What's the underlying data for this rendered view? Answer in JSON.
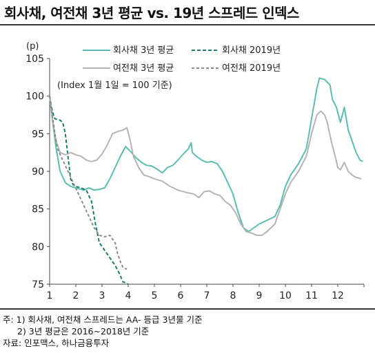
{
  "title": "회사채, 여전채 3년 평균 vs. 19년 스프레드 인덱스",
  "chart_data": {
    "type": "line",
    "yunit": "(p)",
    "annotation": "(Index 1월 1일 = 100 기준)",
    "ylim": [
      75,
      105
    ],
    "yticks": [
      75,
      80,
      85,
      90,
      95,
      100,
      105
    ],
    "xlim": [
      1,
      13
    ],
    "xticks": [
      1,
      2,
      3,
      4,
      5,
      6,
      7,
      8,
      9,
      10,
      11,
      12
    ],
    "series": [
      {
        "name": "회사채 3년 평균",
        "color": "#5bbcb0",
        "dash": "",
        "points": [
          [
            1.0,
            100
          ],
          [
            1.1,
            97
          ],
          [
            1.25,
            93
          ],
          [
            1.4,
            90
          ],
          [
            1.6,
            88.5
          ],
          [
            1.8,
            88
          ],
          [
            2.0,
            87.8
          ],
          [
            2.3,
            87.5
          ],
          [
            2.5,
            87.8
          ],
          [
            2.7,
            87.5
          ],
          [
            2.9,
            87.6
          ],
          [
            3.1,
            87.8
          ],
          [
            3.3,
            89
          ],
          [
            3.5,
            90.5
          ],
          [
            3.7,
            92
          ],
          [
            3.9,
            93.3
          ],
          [
            4.1,
            92.6
          ],
          [
            4.3,
            91.8
          ],
          [
            4.5,
            91.2
          ],
          [
            4.7,
            90.8
          ],
          [
            4.9,
            90.7
          ],
          [
            5.1,
            90.3
          ],
          [
            5.3,
            89.8
          ],
          [
            5.5,
            90.5
          ],
          [
            5.7,
            90.8
          ],
          [
            5.9,
            91.5
          ],
          [
            6.1,
            92.3
          ],
          [
            6.3,
            93.0
          ],
          [
            6.4,
            93.8
          ],
          [
            6.45,
            92.5
          ],
          [
            6.6,
            92
          ],
          [
            6.8,
            91.5
          ],
          [
            7.0,
            91.2
          ],
          [
            7.2,
            91.3
          ],
          [
            7.4,
            91.0
          ],
          [
            7.6,
            90.0
          ],
          [
            7.8,
            88.5
          ],
          [
            8.0,
            87
          ],
          [
            8.2,
            84.5
          ],
          [
            8.4,
            82.5
          ],
          [
            8.6,
            82
          ],
          [
            8.8,
            82.5
          ],
          [
            9.0,
            83
          ],
          [
            9.3,
            83.5
          ],
          [
            9.6,
            84
          ],
          [
            9.8,
            85.5
          ],
          [
            10.0,
            88
          ],
          [
            10.2,
            89.5
          ],
          [
            10.5,
            91
          ],
          [
            10.8,
            93
          ],
          [
            11.0,
            97
          ],
          [
            11.2,
            101
          ],
          [
            11.3,
            102.4
          ],
          [
            11.5,
            102.2
          ],
          [
            11.7,
            101.5
          ],
          [
            11.8,
            99.5
          ],
          [
            11.95,
            98.5
          ],
          [
            12.1,
            96.5
          ],
          [
            12.25,
            98.5
          ],
          [
            12.4,
            95.5
          ],
          [
            12.55,
            94
          ],
          [
            12.7,
            92.5
          ],
          [
            12.85,
            91.5
          ],
          [
            12.95,
            91.3
          ]
        ]
      },
      {
        "name": "회사채 2019년",
        "color": "#1a7a6c",
        "dash": "5,3",
        "points": [
          [
            1.0,
            100
          ],
          [
            1.1,
            98
          ],
          [
            1.2,
            97
          ],
          [
            1.4,
            96.8
          ],
          [
            1.5,
            96.5
          ],
          [
            1.6,
            95
          ],
          [
            1.7,
            92
          ],
          [
            1.8,
            89
          ],
          [
            1.9,
            88.2
          ],
          [
            2.0,
            88
          ],
          [
            2.2,
            87.8
          ],
          [
            2.4,
            87.5
          ],
          [
            2.6,
            86
          ],
          [
            2.75,
            83
          ],
          [
            2.9,
            80.5
          ],
          [
            3.1,
            79.5
          ],
          [
            3.3,
            78.5
          ],
          [
            3.5,
            77.5
          ],
          [
            3.65,
            76.5
          ],
          [
            3.8,
            75.3
          ],
          [
            3.9,
            75.2
          ],
          [
            4.0,
            75
          ]
        ]
      },
      {
        "name": "여전채 3년 평균",
        "color": "#b4b4b4",
        "dash": "",
        "points": [
          [
            1.0,
            100
          ],
          [
            1.1,
            97
          ],
          [
            1.25,
            94
          ],
          [
            1.4,
            92.5
          ],
          [
            1.6,
            92.2
          ],
          [
            1.8,
            92.5
          ],
          [
            2.0,
            92.2
          ],
          [
            2.2,
            92
          ],
          [
            2.4,
            91.5
          ],
          [
            2.6,
            91.3
          ],
          [
            2.8,
            91.5
          ],
          [
            3.0,
            92.3
          ],
          [
            3.2,
            93.5
          ],
          [
            3.4,
            95
          ],
          [
            3.6,
            95.3
          ],
          [
            3.8,
            95.5
          ],
          [
            3.95,
            95.8
          ],
          [
            4.05,
            94.5
          ],
          [
            4.2,
            92
          ],
          [
            4.4,
            90.5
          ],
          [
            4.6,
            89.5
          ],
          [
            4.8,
            89.3
          ],
          [
            5.0,
            89.0
          ],
          [
            5.3,
            88.7
          ],
          [
            5.6,
            88.0
          ],
          [
            5.9,
            87.5
          ],
          [
            6.2,
            87.2
          ],
          [
            6.5,
            87.0
          ],
          [
            6.7,
            86.5
          ],
          [
            6.9,
            87.3
          ],
          [
            7.1,
            87.4
          ],
          [
            7.3,
            87.0
          ],
          [
            7.5,
            86.8
          ],
          [
            7.7,
            86.0
          ],
          [
            7.9,
            85.5
          ],
          [
            8.1,
            84.5
          ],
          [
            8.3,
            83
          ],
          [
            8.5,
            82
          ],
          [
            8.7,
            81.8
          ],
          [
            8.9,
            81.5
          ],
          [
            9.1,
            81.5
          ],
          [
            9.3,
            82
          ],
          [
            9.6,
            83
          ],
          [
            9.8,
            85
          ],
          [
            10.0,
            87
          ],
          [
            10.2,
            88.5
          ],
          [
            10.5,
            90
          ],
          [
            10.8,
            92
          ],
          [
            11.0,
            95
          ],
          [
            11.2,
            97.5
          ],
          [
            11.35,
            98
          ],
          [
            11.5,
            97.5
          ],
          [
            11.6,
            96.5
          ],
          [
            11.75,
            94
          ],
          [
            11.9,
            92
          ],
          [
            12.0,
            90.5
          ],
          [
            12.1,
            90.2
          ],
          [
            12.25,
            91.2
          ],
          [
            12.4,
            90
          ],
          [
            12.55,
            89.5
          ],
          [
            12.7,
            89.2
          ],
          [
            12.9,
            89
          ]
        ]
      },
      {
        "name": "여전채 2019년",
        "color": "#8a8a8a",
        "dash": "4,3",
        "points": [
          [
            1.0,
            100
          ],
          [
            1.1,
            97.5
          ],
          [
            1.2,
            95
          ],
          [
            1.3,
            93
          ],
          [
            1.5,
            91.5
          ],
          [
            1.7,
            90
          ],
          [
            1.9,
            88.5
          ],
          [
            2.1,
            87
          ],
          [
            2.3,
            85.5
          ],
          [
            2.5,
            84
          ],
          [
            2.7,
            82.5
          ],
          [
            2.9,
            81.5
          ],
          [
            3.1,
            81.3
          ],
          [
            3.3,
            81.5
          ],
          [
            3.5,
            80.5
          ],
          [
            3.6,
            79
          ],
          [
            3.7,
            78
          ],
          [
            3.8,
            77.2
          ],
          [
            3.95,
            77
          ]
        ]
      }
    ]
  },
  "notes": {
    "line1": "주: 1) 회사채, 여전채 스프레드는 AA- 등급 3년물 기준",
    "line2": "2) 3년 평균은 2016~2018년 기준",
    "line3": "자료: 인포맥스, 하나금융투자"
  }
}
